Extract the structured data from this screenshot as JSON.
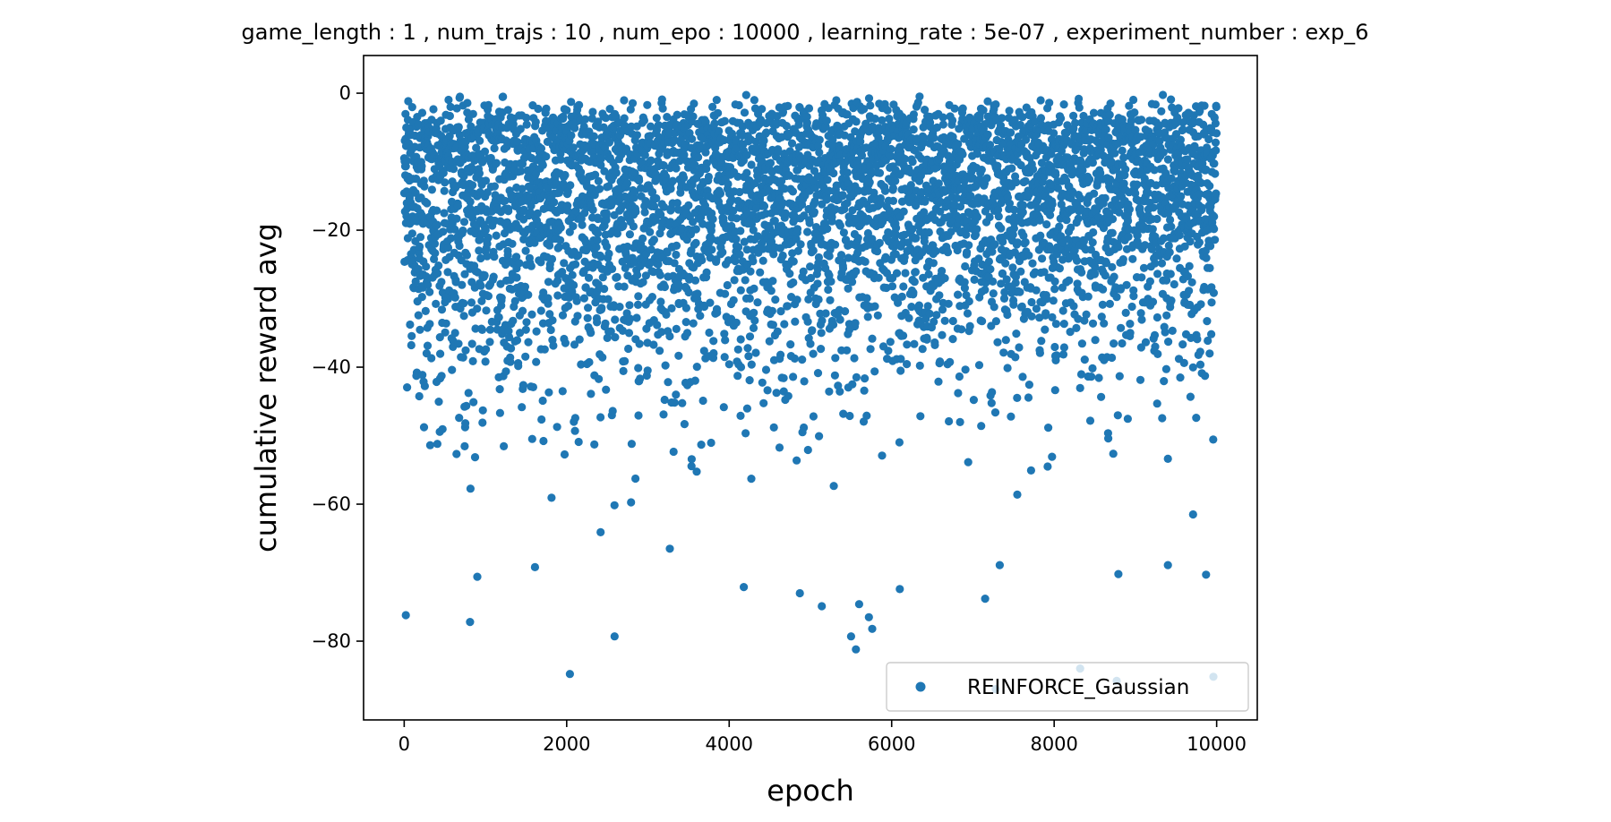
{
  "chart_data": {
    "type": "scatter",
    "title": "game_length : 1 , num_trajs : 10 , num_epo : 10000 , learning_rate : 5e-07 , experiment_number : exp_6",
    "xlabel": "epoch",
    "ylabel": "cumulative reward avg",
    "xlim": [
      -500,
      10500
    ],
    "ylim": [
      -91.5,
      5.5
    ],
    "x_ticks": [
      0,
      2000,
      4000,
      6000,
      8000,
      10000
    ],
    "x_tick_labels": [
      "0",
      "2000",
      "4000",
      "6000",
      "8000",
      "10000"
    ],
    "y_ticks": [
      0,
      -20,
      -40,
      -60,
      -80
    ],
    "y_tick_labels": [
      "0",
      "−20",
      "−40",
      "−60",
      "−80"
    ],
    "grid": false,
    "legend_position": "lower-right",
    "series": [
      {
        "name": "REINFORCE_Gaussian",
        "color": "#1f77b4",
        "x_range": [
          0,
          9999
        ],
        "num_points": 10000,
        "outliers": [
          {
            "x": 20,
            "y": -76.2
          },
          {
            "x": 810,
            "y": -77.2
          },
          {
            "x": 900,
            "y": -70.6
          },
          {
            "x": 1610,
            "y": -69.2
          },
          {
            "x": 2040,
            "y": -84.8
          },
          {
            "x": 2590,
            "y": -79.3
          },
          {
            "x": 3270,
            "y": -66.5
          },
          {
            "x": 4180,
            "y": -72.1
          },
          {
            "x": 4870,
            "y": -73.0
          },
          {
            "x": 5140,
            "y": -74.9
          },
          {
            "x": 5500,
            "y": -79.3
          },
          {
            "x": 5560,
            "y": -81.2
          },
          {
            "x": 5600,
            "y": -74.6
          },
          {
            "x": 5720,
            "y": -76.5
          },
          {
            "x": 5760,
            "y": -78.2
          },
          {
            "x": 6100,
            "y": -72.4
          },
          {
            "x": 7150,
            "y": -73.8
          },
          {
            "x": 7330,
            "y": -68.9
          },
          {
            "x": 7280,
            "y": -87.0
          },
          {
            "x": 8320,
            "y": -84.0
          },
          {
            "x": 8790,
            "y": -70.2
          },
          {
            "x": 8770,
            "y": -85.8
          },
          {
            "x": 9400,
            "y": -68.9
          },
          {
            "x": 9870,
            "y": -70.3
          },
          {
            "x": 9960,
            "y": -85.2
          },
          {
            "x": 9710,
            "y": -61.5
          }
        ]
      }
    ]
  }
}
